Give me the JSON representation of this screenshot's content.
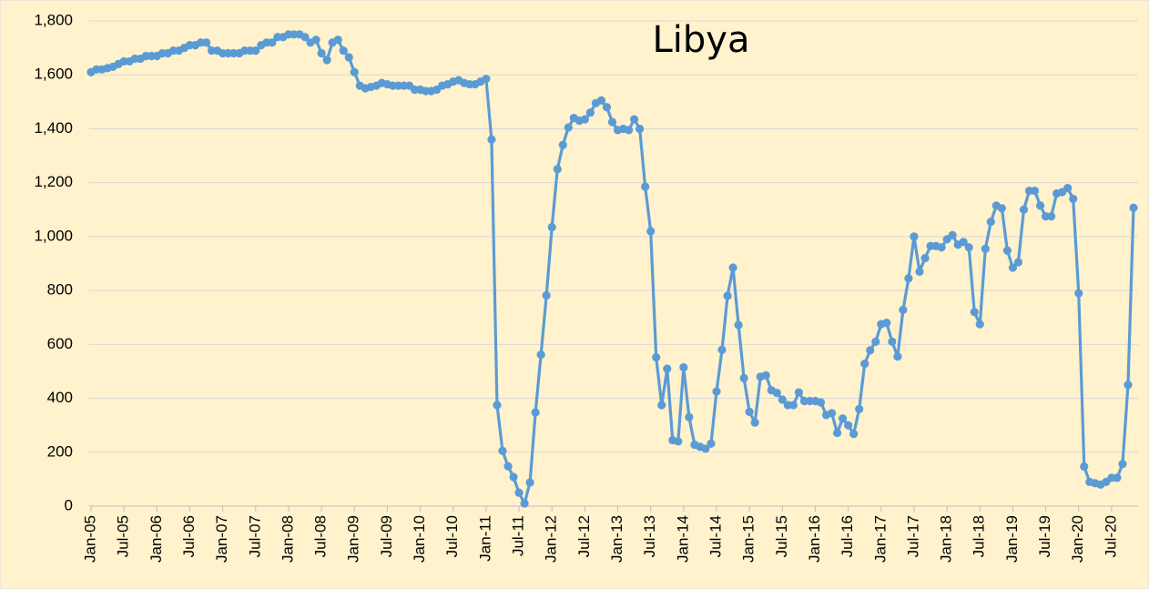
{
  "chart_data": {
    "type": "line",
    "title": "Libya",
    "categories": [
      "Jan-05",
      null,
      null,
      null,
      null,
      null,
      "Jul-05",
      null,
      null,
      null,
      null,
      null,
      "Jan-06",
      null,
      null,
      null,
      null,
      null,
      "Jul-06",
      null,
      null,
      null,
      null,
      null,
      "Jan-07",
      null,
      null,
      null,
      null,
      null,
      "Jul-07",
      null,
      null,
      null,
      null,
      null,
      "Jan-08",
      null,
      null,
      null,
      null,
      null,
      "Jul-08",
      null,
      null,
      null,
      null,
      null,
      "Jan-09",
      null,
      null,
      null,
      null,
      null,
      "Jul-09",
      null,
      null,
      null,
      null,
      null,
      "Jan-10",
      null,
      null,
      null,
      null,
      null,
      "Jul-10",
      null,
      null,
      null,
      null,
      null,
      "Jan-11",
      null,
      null,
      null,
      null,
      null,
      "Jul-11",
      null,
      null,
      null,
      null,
      null,
      "Jan-12",
      null,
      null,
      null,
      null,
      null,
      "Jul-12",
      null,
      null,
      null,
      null,
      null,
      "Jan-13",
      null,
      null,
      null,
      null,
      null,
      "Jul-13",
      null,
      null,
      null,
      null,
      null,
      "Jan-14",
      null,
      null,
      null,
      null,
      null,
      "Jul-14",
      null,
      null,
      null,
      null,
      null,
      "Jan-15",
      null,
      null,
      null,
      null,
      null,
      "Jul-15",
      null,
      null,
      null,
      null,
      null,
      "Jan-16",
      null,
      null,
      null,
      null,
      null,
      "Jul-16",
      null,
      null,
      null,
      null,
      null,
      "Jan-17",
      null,
      null,
      null,
      null,
      null,
      "Jul-17",
      null,
      null,
      null,
      null,
      null,
      "Jan-18",
      null,
      null,
      null,
      null,
      null,
      "Jul-18",
      null,
      null,
      null,
      null,
      null,
      "Jan-19",
      null,
      null,
      null,
      null,
      null,
      "Jul-19",
      null,
      null,
      null,
      null,
      null,
      "Jan-20",
      null,
      null,
      null,
      null,
      null,
      "Jul-20",
      null,
      null,
      null,
      null
    ],
    "values": [
      1610,
      1620,
      1620,
      1625,
      1630,
      1640,
      1650,
      1650,
      1660,
      1660,
      1670,
      1670,
      1670,
      1680,
      1680,
      1690,
      1690,
      1700,
      1710,
      1710,
      1720,
      1720,
      1690,
      1690,
      1680,
      1680,
      1680,
      1680,
      1690,
      1690,
      1690,
      1710,
      1720,
      1720,
      1740,
      1740,
      1750,
      1750,
      1750,
      1740,
      1720,
      1730,
      1680,
      1655,
      1720,
      1730,
      1690,
      1665,
      1610,
      1560,
      1550,
      1555,
      1560,
      1570,
      1565,
      1560,
      1560,
      1560,
      1560,
      1545,
      1545,
      1540,
      1540,
      1545,
      1560,
      1565,
      1575,
      1580,
      1570,
      1565,
      1565,
      1575,
      1585,
      1360,
      375,
      205,
      148,
      108,
      50,
      10,
      88,
      348,
      562,
      782,
      1035,
      1250,
      1340,
      1405,
      1440,
      1430,
      1435,
      1460,
      1495,
      1505,
      1480,
      1425,
      1395,
      1400,
      1395,
      1435,
      1400,
      1185,
      1020,
      552,
      375,
      510,
      245,
      240,
      515,
      330,
      228,
      220,
      213,
      232,
      425,
      580,
      780,
      885,
      672,
      475,
      350,
      310,
      480,
      485,
      430,
      420,
      395,
      375,
      375,
      422,
      390,
      390,
      390,
      385,
      338,
      345,
      272,
      325,
      300,
      268,
      360,
      528,
      578,
      610,
      675,
      680,
      610,
      555,
      728,
      845,
      1000,
      870,
      920,
      965,
      965,
      960,
      990,
      1005,
      970,
      980,
      960,
      720,
      675,
      955,
      1055,
      1115,
      1105,
      948,
      885,
      905,
      1100,
      1170,
      1170,
      1115,
      1075,
      1075,
      1160,
      1165,
      1180,
      1140,
      790,
      147,
      90,
      85,
      80,
      90,
      105,
      105,
      156,
      450,
      1107
    ],
    "color": "#5b9bd5",
    "ylim": [
      0,
      1800
    ],
    "yticks": [
      0,
      200,
      400,
      600,
      800,
      {
        "value": 1000,
        "label": "1,000"
      },
      {
        "value": 1200,
        "label": "1,200"
      },
      {
        "value": 1400,
        "label": "1,400"
      },
      {
        "value": 1600,
        "label": "1,600"
      },
      {
        "value": 1800,
        "label": "1,800"
      }
    ],
    "grid": true
  }
}
